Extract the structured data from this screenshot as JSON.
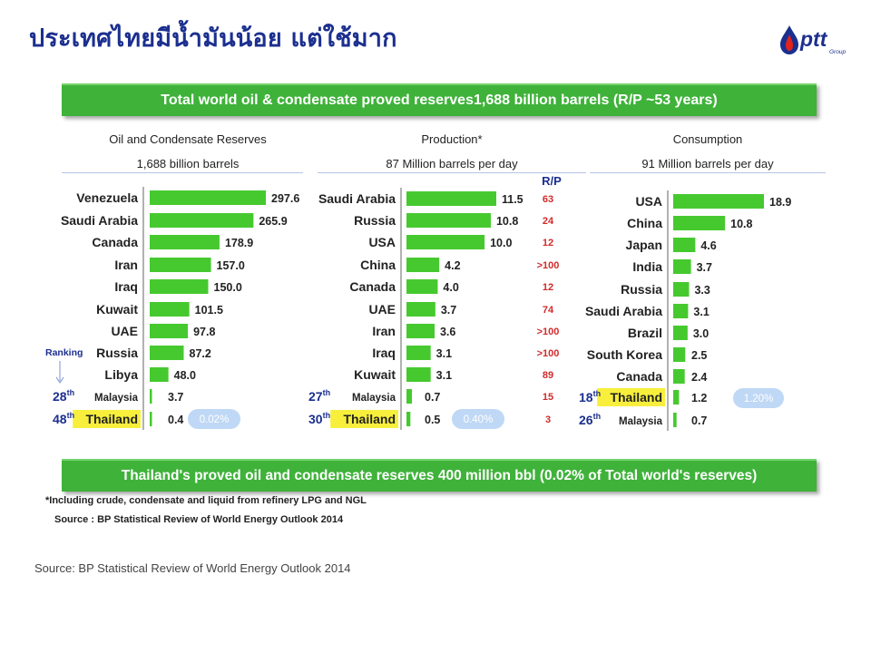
{
  "slide": {
    "title": "ประเทศไทยมีน้ำมันน้อย แต่ใช้มาก",
    "logo_text": "ptt",
    "logo_subtext": "Group",
    "banner_top": "Total world oil & condensate proved reserves1,688 billion barrels (R/P ~53 years)",
    "banner_bottom": "Thailand's proved oil and condensate reserves 400 million bbl (0.02% of Total world's reserves)",
    "footnote_1": "*Including crude, condensate and liquid from refinery LPG and NGL",
    "footnote_2": "Source : BP Statistical Review of World Energy Outlook 2014",
    "source": "Source: BP Statistical Review of World Energy Outlook 2014",
    "colors": {
      "bar": "#46c92f",
      "highlight": "#f7ef3c",
      "title": "#1b2f8f",
      "banner": "#3fb23a",
      "rank": "#1b2f8f",
      "rp": "#d12a2a",
      "badge": "#bfd8f5"
    }
  },
  "chart_data": [
    {
      "type": "bar",
      "orientation": "horizontal",
      "title": "Oil and Condensate Reserves",
      "subtitle": "1,688 billion barrels",
      "categories": [
        "Venezuela",
        "Saudi Arabia",
        "Canada",
        "Iran",
        "Iraq",
        "Kuwait",
        "UAE",
        "Russia",
        "Libya",
        "Malaysia",
        "Thailand"
      ],
      "values": [
        297.6,
        265.9,
        178.9,
        157.0,
        150.0,
        101.5,
        97.8,
        87.2,
        48.0,
        3.7,
        0.4
      ],
      "labels": [
        "297.6",
        "265.9",
        "178.9",
        "157.0",
        "150.0",
        "101.5",
        "97.8",
        "87.2",
        "48.0",
        "3.7",
        "0.4"
      ],
      "xlim": [
        0,
        297.6
      ],
      "ranks": {
        "Malaysia": "28",
        "Thailand": "48"
      },
      "rank_suffix": "th",
      "ranking_label": "Ranking",
      "highlight": "Thailand",
      "share_badge": "0.02%"
    },
    {
      "type": "bar",
      "orientation": "horizontal",
      "title": "Production*",
      "subtitle": "87 Million barrels per day",
      "categories": [
        "Saudi Arabia",
        "Russia",
        "USA",
        "China",
        "Canada",
        "UAE",
        "Iran",
        "Iraq",
        "Kuwait",
        "Malaysia",
        "Thailand"
      ],
      "values": [
        11.5,
        10.8,
        10.0,
        4.2,
        4.0,
        3.7,
        3.6,
        3.1,
        3.1,
        0.7,
        0.5
      ],
      "labels": [
        "11.5",
        "10.8",
        "10.0",
        "4.2",
        "4.0",
        "3.7",
        "3.6",
        "3.1",
        "3.1",
        "0.7",
        "0.5"
      ],
      "xlim": [
        0,
        11.5
      ],
      "rp_header": "R/P",
      "rp": [
        "63",
        "24",
        "12",
        ">100",
        "12",
        "74",
        ">100",
        ">100",
        "89",
        "15",
        "3"
      ],
      "ranks": {
        "Malaysia": "27",
        "Thailand": "30"
      },
      "rank_suffix": "th",
      "highlight": "Thailand",
      "share_badge": "0.40%"
    },
    {
      "type": "bar",
      "orientation": "horizontal",
      "title": "Consumption",
      "subtitle": "91 Million barrels per day",
      "categories": [
        "USA",
        "China",
        "Japan",
        "India",
        "Russia",
        "Saudi Arabia",
        "Brazil",
        "South Korea",
        "Canada",
        "Thailand",
        "Malaysia"
      ],
      "values": [
        18.9,
        10.8,
        4.6,
        3.7,
        3.3,
        3.1,
        3.0,
        2.5,
        2.4,
        1.2,
        0.7
      ],
      "labels": [
        "18.9",
        "10.8",
        "4.6",
        "3.7",
        "3.3",
        "3.1",
        "3.0",
        "2.5",
        "2.4",
        "1.2",
        "0.7"
      ],
      "xlim": [
        0,
        18.9
      ],
      "ranks": {
        "Thailand": "18",
        "Malaysia": "26"
      },
      "rank_suffix": "th",
      "highlight": "Thailand",
      "share_badge": "1.20%"
    }
  ]
}
